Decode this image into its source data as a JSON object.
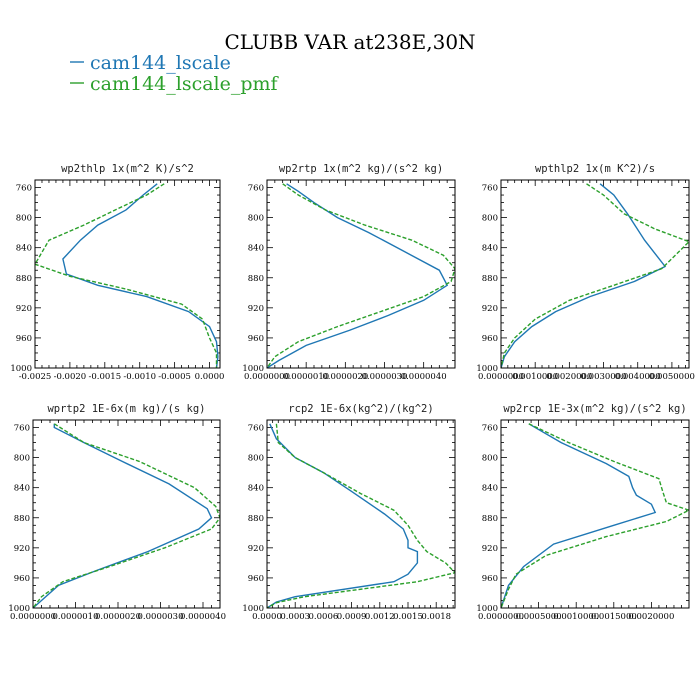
{
  "figure": {
    "title": "CLUBB VAR at238E,30N",
    "legend": [
      {
        "name": "cam144_lscale",
        "color": "#1f77b4",
        "style": "solid"
      },
      {
        "name": "cam144_lscale_pmf",
        "color": "#2ca02c",
        "style": "dashed"
      }
    ]
  },
  "chart_data": [
    {
      "type": "line",
      "title": "wp2thlp   1x(m^2 K)/s^2",
      "xlim": [
        -0.0025,
        0.00015
      ],
      "ylim": [
        1000,
        750
      ],
      "y_ticks": [
        760,
        800,
        840,
        880,
        920,
        960,
        1000
      ],
      "x_tick_values": [
        -0.0025,
        -0.002,
        -0.0015,
        -0.001,
        -0.0005,
        0.0
      ],
      "x_tick_labels": [
        "-0.0025",
        "-0.0020",
        "-0.0015",
        "-0.0010",
        "-0.0005",
        "0.0000"
      ],
      "series": [
        {
          "name": "cam144_lscale",
          "x": [
            -0.00075,
            -0.00095,
            -0.0012,
            -0.0016,
            -0.00185,
            -0.0021,
            -0.00205,
            -0.0016,
            -0.0009,
            -0.0003,
            0.0,
            0.0001,
            0.00012,
            0.0001
          ],
          "y": [
            755,
            770,
            790,
            810,
            830,
            855,
            875,
            890,
            905,
            925,
            945,
            965,
            985,
            1000
          ]
        },
        {
          "name": "cam144_lscale_pmf",
          "x": [
            -0.00065,
            -0.0009,
            -0.0014,
            -0.0018,
            -0.0023,
            -0.0025,
            -0.002,
            -0.0012,
            -0.0004,
            -0.0001,
            0.0,
            0.0001,
            0.0001
          ],
          "y": [
            755,
            770,
            792,
            810,
            830,
            862,
            878,
            895,
            915,
            935,
            960,
            980,
            1000
          ]
        }
      ]
    },
    {
      "type": "line",
      "title": "wp2rtp   1x(m^2 kg)/(s^2 kg)",
      "xlim": [
        0.0,
        4.8e-06
      ],
      "ylim": [
        1000,
        750
      ],
      "y_ticks": [
        760,
        800,
        840,
        880,
        920,
        960,
        1000
      ],
      "x_tick_values": [
        0.0,
        1e-06,
        2e-06,
        3e-06,
        4e-06
      ],
      "x_tick_labels": [
        "0.0000000",
        "0.0000010",
        "0.0000020",
        "0.0000030",
        "0.0000040"
      ],
      "series": [
        {
          "name": "cam144_lscale",
          "x": [
            5e-07,
            8e-07,
            1.2e-06,
            1.8e-06,
            2.6e-06,
            3.5e-06,
            4.4e-06,
            4.6e-06,
            4e-06,
            3.1e-06,
            2.1e-06,
            1e-06,
            3e-07,
            0.0
          ],
          "y": [
            755,
            765,
            780,
            800,
            820,
            845,
            870,
            890,
            910,
            930,
            950,
            970,
            990,
            1000
          ]
        },
        {
          "name": "cam144_lscale_pmf",
          "x": [
            4e-07,
            8e-07,
            1.5e-06,
            2.5e-06,
            3.7e-06,
            4.5e-06,
            4.8e-06,
            4.7e-06,
            4e-06,
            2.9e-06,
            1.8e-06,
            8e-07,
            2e-07,
            0.0
          ],
          "y": [
            755,
            770,
            790,
            810,
            830,
            850,
            868,
            885,
            905,
            925,
            945,
            965,
            985,
            1000
          ]
        }
      ]
    },
    {
      "type": "line",
      "title": "wpthlp2   1x(m K^2)/s",
      "xlim": [
        0.0,
        0.0055
      ],
      "ylim": [
        1000,
        750
      ],
      "y_ticks": [
        760,
        800,
        840,
        880,
        920,
        960,
        1000
      ],
      "x_tick_values": [
        0.0,
        0.001,
        0.002,
        0.003,
        0.004,
        0.005
      ],
      "x_tick_labels": [
        "0.0000000",
        "0.0010000",
        "0.0020000",
        "0.0030000",
        "0.0040000",
        "0.0050000"
      ],
      "series": [
        {
          "name": "cam144_lscale",
          "x": [
            0.0029,
            0.0033,
            0.0037,
            0.0042,
            0.0048,
            0.0039,
            0.0026,
            0.0016,
            0.0009,
            0.0004,
            0.0001,
            0.0
          ],
          "y": [
            755,
            770,
            795,
            830,
            865,
            885,
            905,
            925,
            945,
            965,
            985,
            1000
          ]
        },
        {
          "name": "cam144_lscale_pmf",
          "x": [
            0.0025,
            0.003,
            0.0036,
            0.0045,
            0.0055,
            0.0047,
            0.0033,
            0.002,
            0.001,
            0.0004,
            0.0001,
            0.0
          ],
          "y": [
            755,
            770,
            795,
            815,
            832,
            868,
            890,
            910,
            935,
            960,
            980,
            1000
          ]
        }
      ]
    },
    {
      "type": "line",
      "title": "wprtp2   1E-6x(m kg)/(s kg)",
      "xlim": [
        0.0,
        4.4e-06
      ],
      "ylim": [
        1000,
        750
      ],
      "y_ticks": [
        760,
        800,
        840,
        880,
        920,
        960,
        1000
      ],
      "x_tick_values": [
        0.0,
        1e-06,
        2e-06,
        3e-06,
        4e-06
      ],
      "x_tick_labels": [
        "0.0000000",
        "0.0000010",
        "0.0000020",
        "0.0000030",
        "0.0000040"
      ],
      "series": [
        {
          "name": "cam144_lscale",
          "x": [
            5e-07,
            5e-07,
            1.2e-06,
            2.1e-06,
            3.2e-06,
            4.1e-06,
            4.2e-06,
            3.9e-06,
            2.7e-06,
            1.5e-06,
            6e-07,
            2e-07,
            0.0
          ],
          "y": [
            755,
            760,
            780,
            805,
            835,
            868,
            880,
            895,
            925,
            950,
            970,
            990,
            1000
          ]
        },
        {
          "name": "cam144_lscale_pmf",
          "x": [
            5e-07,
            1.2e-06,
            2.5e-06,
            3.8e-06,
            4.3e-06,
            4.4e-06,
            4.2e-06,
            3.1e-06,
            1.8e-06,
            7e-07,
            2e-07,
            0.0
          ],
          "y": [
            755,
            780,
            805,
            840,
            865,
            880,
            895,
            920,
            945,
            965,
            985,
            1000
          ]
        }
      ]
    },
    {
      "type": "line",
      "title": "rcp2   1E-6x(kg^2)/(kg^2)",
      "xlim": [
        0.0,
        0.002
      ],
      "ylim": [
        1000,
        750
      ],
      "y_ticks": [
        760,
        800,
        840,
        880,
        920,
        960,
        1000
      ],
      "x_tick_values": [
        0.0,
        0.0003,
        0.0006,
        0.0009,
        0.0012,
        0.0015,
        0.0018
      ],
      "x_tick_labels": [
        "0.0000",
        "0.0003",
        "0.0006",
        "0.0009",
        "0.0012",
        "0.0015",
        "0.0018"
      ],
      "series": [
        {
          "name": "cam144_lscale",
          "x": [
            3e-05,
            0.0001,
            0.0003,
            0.0006,
            0.0009,
            0.00125,
            0.00145,
            0.0015,
            0.0015,
            0.0016,
            0.0016,
            0.0015,
            0.00135,
            0.0003,
            0.0001,
            0.0
          ],
          "y": [
            755,
            775,
            800,
            820,
            845,
            875,
            895,
            910,
            920,
            925,
            940,
            955,
            965,
            985,
            992,
            1000
          ]
        },
        {
          "name": "cam144_lscale_pmf",
          "x": [
            0.0001,
            0.00012,
            0.0003,
            0.0006,
            0.001,
            0.00135,
            0.0015,
            0.0016,
            0.0017,
            0.0019,
            0.002,
            0.0016,
            0.0004,
            0.0001,
            0.0
          ],
          "y": [
            755,
            780,
            800,
            820,
            848,
            870,
            890,
            910,
            925,
            940,
            953,
            965,
            985,
            993,
            1000
          ]
        }
      ]
    },
    {
      "type": "line",
      "title": "wp2rcp   1E-3x(m^2 kg)/(s^2 kg)",
      "xlim": [
        0.0,
        0.0025
      ],
      "ylim": [
        1000,
        750
      ],
      "y_ticks": [
        760,
        800,
        840,
        880,
        920,
        960,
        1000
      ],
      "x_tick_values": [
        0.0,
        0.0005,
        0.001,
        0.0015,
        0.002
      ],
      "x_tick_labels": [
        "0.0000000",
        "0.0005000",
        "0.0010000",
        "0.0015000",
        "0.0020000"
      ],
      "series": [
        {
          "name": "cam144_lscale",
          "x": [
            0.00037,
            0.0008,
            0.0014,
            0.0017,
            0.00175,
            0.0018,
            0.002,
            0.00205,
            0.0015,
            0.0007,
            0.0003,
            0.0001,
            0.0
          ],
          "y": [
            755,
            780,
            808,
            825,
            840,
            850,
            862,
            873,
            890,
            915,
            945,
            970,
            1000
          ]
        },
        {
          "name": "cam144_lscale_pmf",
          "x": [
            0.00037,
            0.0009,
            0.0015,
            0.0021,
            0.00215,
            0.0022,
            0.0025,
            0.0022,
            0.0014,
            0.0006,
            0.0002,
            0.0001,
            0.0
          ],
          "y": [
            755,
            780,
            805,
            828,
            845,
            860,
            870,
            885,
            905,
            930,
            955,
            975,
            1000
          ]
        }
      ]
    }
  ]
}
